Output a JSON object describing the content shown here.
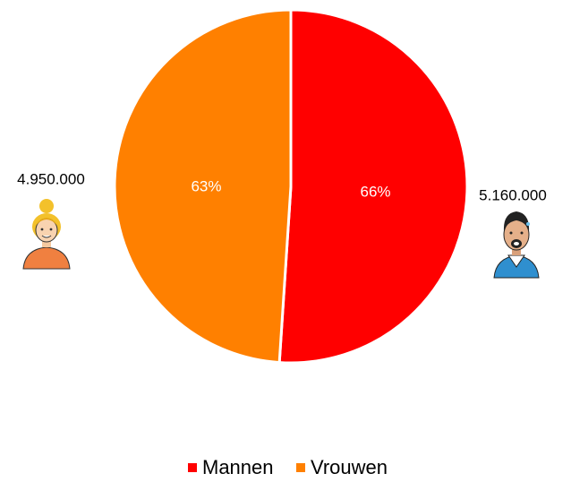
{
  "chart_data": {
    "type": "pie",
    "categories": [
      "Mannen",
      "Vrouwen"
    ],
    "values": [
      5160000,
      4950000
    ],
    "value_labels": [
      "5.160.000",
      "4.950.000"
    ],
    "colors": [
      "#ff0000",
      "#ff8000"
    ],
    "annotations": [
      "66%",
      "63%"
    ],
    "legend": "bottom"
  }
}
